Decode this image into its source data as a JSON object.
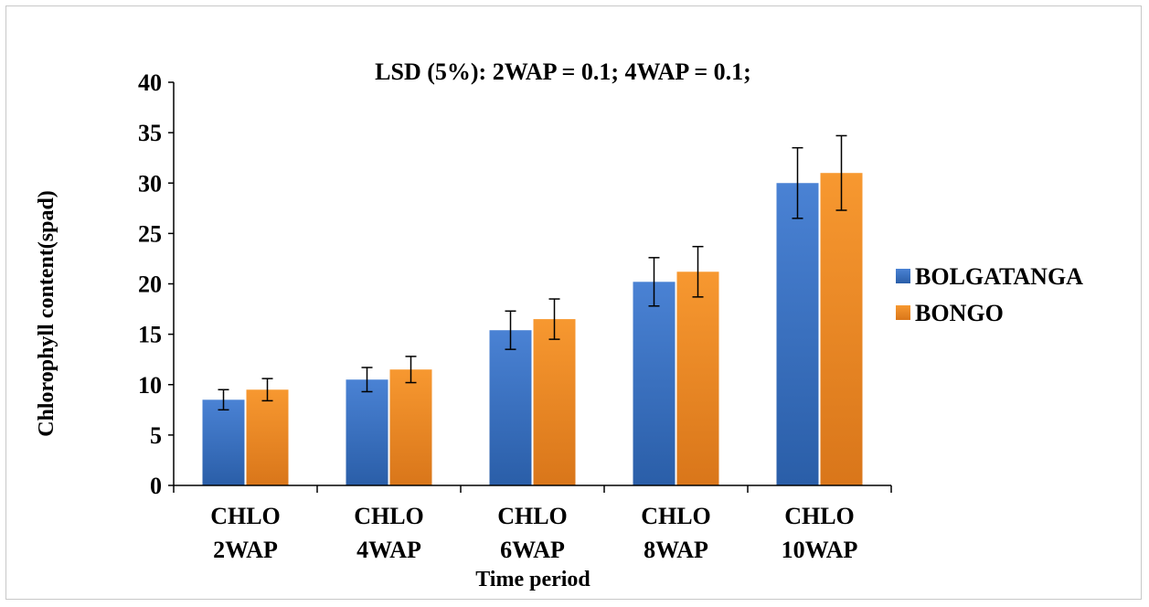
{
  "chart_data": {
    "type": "bar",
    "title": "LSD (5%): 2WAP = 0.1; 4WAP = 0.1;",
    "xlabel": "Time period",
    "ylabel": "Chlorophyll  content(spad)",
    "ylim": [
      0,
      40
    ],
    "yticks": [
      "0",
      "5",
      "10",
      "15",
      "20",
      "25",
      "30",
      "35",
      "40"
    ],
    "grid": false,
    "legend_position": "right",
    "categories": [
      [
        "CHLO",
        "2WAP"
      ],
      [
        "CHLO",
        "4WAP"
      ],
      [
        "CHLO",
        "6WAP"
      ],
      [
        "CHLO",
        "8WAP"
      ],
      [
        "CHLO",
        "10WAP"
      ]
    ],
    "series": [
      {
        "name": "BOLGATANGA",
        "color": "#3a72c4",
        "values": [
          8.5,
          10.5,
          15.4,
          20.2,
          30.0
        ],
        "errors": [
          1.0,
          1.2,
          1.9,
          2.4,
          3.5
        ]
      },
      {
        "name": "BONGO",
        "color": "#f28a25",
        "values": [
          9.5,
          11.5,
          16.5,
          21.2,
          31.0
        ],
        "errors": [
          1.1,
          1.3,
          2.0,
          2.5,
          3.7
        ]
      }
    ]
  }
}
